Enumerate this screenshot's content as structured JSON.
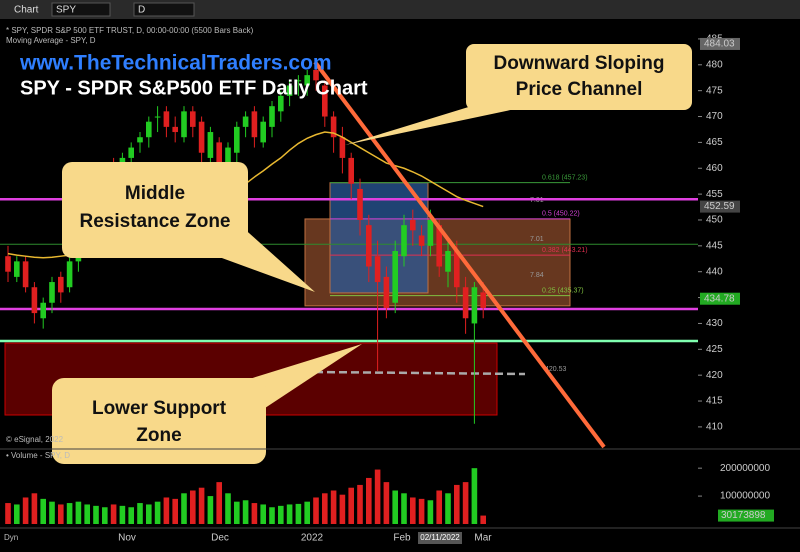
{
  "toolbar": {
    "tab": "Chart",
    "symbol": "SPY",
    "interval": "D"
  },
  "info": [
    "* SPY, SPDR S&P 500 ETF TRUST, D, 00:00-00:00 (5500 Bars Back)",
    "Moving Average - SPY, D"
  ],
  "copyright": "© eSignal, 2022",
  "volume_label": "• Volume - SPY, D",
  "dyn": "Dyn",
  "chart_data": {
    "type": "candlestick",
    "title": "SPY - SPDR S&P500 ETF Daily Chart",
    "subtitle": "www.TheTechnicalTraders.com",
    "x_labels": [
      "Nov",
      "Dec",
      "2022",
      "Feb",
      "Mar"
    ],
    "x_cursor_label": "02/11/2022",
    "open": [
      443,
      439,
      442,
      437,
      431,
      434,
      439,
      437,
      442,
      446,
      450,
      455,
      461,
      459,
      462,
      465,
      466,
      470,
      471,
      468,
      466,
      471,
      469,
      462,
      465,
      455,
      463,
      468,
      471,
      465,
      468,
      471,
      474,
      477,
      476,
      479,
      476,
      470,
      466,
      462,
      456,
      449,
      443,
      439,
      434,
      443,
      450,
      447,
      445,
      449,
      440,
      444,
      437,
      430,
      436
    ],
    "high": [
      445,
      443,
      443,
      438,
      435,
      439,
      440,
      443,
      447,
      451,
      456,
      459,
      462,
      463,
      465,
      467,
      470,
      472,
      472,
      470,
      472,
      472,
      470,
      468,
      466,
      465,
      469,
      471,
      472,
      470,
      473,
      475,
      477,
      478,
      479,
      480,
      477,
      471,
      468,
      463,
      458,
      451,
      446,
      441,
      446,
      451,
      452,
      449,
      452,
      450,
      446,
      446,
      439,
      438,
      438
    ],
    "low": [
      438,
      438,
      436,
      430,
      429,
      432,
      434,
      436,
      440,
      444,
      448,
      453,
      457,
      457,
      460,
      463,
      464,
      467,
      466,
      465,
      465,
      466,
      461,
      460,
      453,
      454,
      461,
      466,
      464,
      464,
      466,
      469,
      472,
      474,
      474,
      475,
      468,
      463,
      459,
      454,
      447,
      438,
      420.8,
      431,
      432,
      441,
      445,
      443,
      443,
      439,
      437,
      434,
      428,
      410.6,
      431
    ],
    "close": [
      440,
      442,
      437,
      432,
      434,
      438,
      436,
      442,
      446,
      450,
      455,
      458,
      459,
      462,
      464,
      466,
      469,
      470,
      468,
      467,
      471,
      468,
      463,
      467,
      455,
      464,
      468,
      470,
      466,
      469,
      472,
      474,
      476,
      477,
      478,
      477,
      470,
      466,
      462,
      457,
      450,
      441,
      438,
      433,
      444,
      449,
      448,
      445,
      450,
      441,
      444,
      437,
      431,
      437,
      433
    ],
    "up_color": "#22cc22",
    "down_color": "#e02020",
    "moving_average": {
      "color": "#e8b830",
      "values": [
        443.5,
        443.2,
        443,
        442.8,
        442.7,
        442.8,
        443,
        443.2,
        443.5,
        444,
        444.5,
        445,
        445.5,
        446,
        446.8,
        447.5,
        448.3,
        449,
        449.8,
        450.5,
        451.2,
        451.8,
        452,
        452.3,
        452.8,
        454,
        455.5,
        457,
        458.3,
        459.5,
        460.8,
        462,
        463.5,
        464.8,
        465.8,
        466.5,
        467,
        466.8,
        466,
        465,
        464,
        463,
        462,
        461,
        460.5,
        460,
        459.3,
        458.5,
        457.5,
        456.5,
        455.5,
        454.5,
        453.8,
        453.2,
        452.6
      ]
    },
    "ylim": [
      406.5,
      487.5
    ],
    "yticks": [
      410,
      415,
      420,
      425,
      430,
      435,
      440,
      445,
      450,
      455,
      460,
      465,
      470,
      475,
      480,
      485
    ],
    "price_labels": [
      {
        "value": 484.03,
        "color": "#666"
      },
      {
        "value": 452.59,
        "color": "#444"
      },
      {
        "value": 434.78,
        "color": "#22aa22"
      }
    ],
    "levels": [
      {
        "value": 454,
        "color": "#e040e0"
      },
      {
        "value": 432.8,
        "color": "#e040e0"
      },
      {
        "value": 426.6,
        "color": "#80ffb0"
      },
      {
        "value": 445.3,
        "color": "#2e8b2e"
      }
    ],
    "zones": [
      {
        "low": 412.3,
        "high": 426.2,
        "color": "#7a0000"
      },
      {
        "low": 433.4,
        "high": 450.2,
        "color": "#8a4a2a"
      },
      {
        "low": 435.9,
        "high": 457.2,
        "color": "#2a5a9a"
      }
    ],
    "fib_levels": [
      {
        "label": "0.618 (457.23)",
        "value": 457.23,
        "color": "#3a9a3a"
      },
      {
        "label": "0.5 (450.22)",
        "value": 450.22,
        "color": "#d040d0"
      },
      {
        "label": "0.382 (443.21)",
        "value": 443.21,
        "color": "#e03050"
      },
      {
        "label": "0.25 (435.37)",
        "value": 435.37,
        "color": "#80c040"
      }
    ],
    "notes": [
      "7.01",
      "7.01",
      "7.84",
      "420.53"
    ],
    "callouts": [
      [
        "Downward Sloping",
        "Price Channel"
      ],
      [
        "Middle",
        "Resistance Zone"
      ],
      [
        "Lower Support",
        "Zone"
      ]
    ],
    "volume": [
      75000000,
      70000000,
      95000000,
      110000000,
      90000000,
      80000000,
      70000000,
      75000000,
      80000000,
      70000000,
      65000000,
      60000000,
      70000000,
      65000000,
      60000000,
      75000000,
      70000000,
      80000000,
      95000000,
      90000000,
      110000000,
      120000000,
      130000000,
      100000000,
      150000000,
      110000000,
      80000000,
      85000000,
      75000000,
      70000000,
      60000000,
      65000000,
      70000000,
      72000000,
      80000000,
      95000000,
      110000000,
      120000000,
      105000000,
      130000000,
      140000000,
      165000000,
      195000000,
      150000000,
      120000000,
      110000000,
      95000000,
      90000000,
      85000000,
      120000000,
      110000000,
      140000000,
      150000000,
      200000000,
      30173898
    ],
    "volume_ylim": [
      0,
      240000000
    ],
    "volume_yticks": [
      100000000,
      200000000
    ],
    "volume_last_label": 30173898
  }
}
